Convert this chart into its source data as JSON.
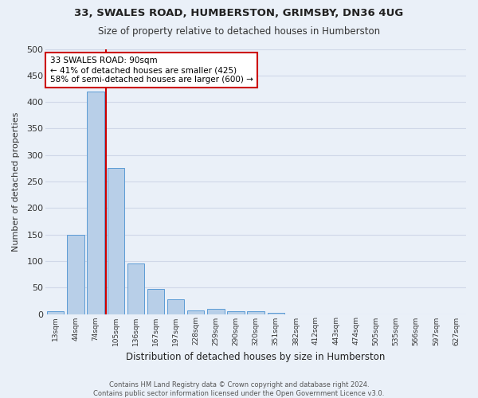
{
  "title1": "33, SWALES ROAD, HUMBERSTON, GRIMSBY, DN36 4UG",
  "title2": "Size of property relative to detached houses in Humberston",
  "xlabel": "Distribution of detached houses by size in Humberston",
  "ylabel": "Number of detached properties",
  "categories": [
    "13sqm",
    "44sqm",
    "74sqm",
    "105sqm",
    "136sqm",
    "167sqm",
    "197sqm",
    "228sqm",
    "259sqm",
    "290sqm",
    "320sqm",
    "351sqm",
    "382sqm",
    "412sqm",
    "443sqm",
    "474sqm",
    "505sqm",
    "535sqm",
    "566sqm",
    "597sqm",
    "627sqm"
  ],
  "values": [
    5,
    150,
    420,
    275,
    95,
    48,
    28,
    7,
    10,
    5,
    5,
    2,
    0,
    0,
    0,
    0,
    0,
    0,
    0,
    0,
    0
  ],
  "bar_color": "#b8cfe8",
  "bar_edge_color": "#5b9bd5",
  "background_color": "#eaf0f8",
  "grid_color": "#d0d8e8",
  "property_line_x": 2.5,
  "annotation_text": "33 SWALES ROAD: 90sqm\n← 41% of detached houses are smaller (425)\n58% of semi-detached houses are larger (600) →",
  "annotation_box_color": "#ffffff",
  "annotation_box_edge": "#cc0000",
  "vline_color": "#cc0000",
  "footnote1": "Contains HM Land Registry data © Crown copyright and database right 2024.",
  "footnote2": "Contains public sector information licensed under the Open Government Licence v3.0.",
  "ylim": [
    0,
    500
  ],
  "yticks": [
    0,
    50,
    100,
    150,
    200,
    250,
    300,
    350,
    400,
    450,
    500
  ]
}
